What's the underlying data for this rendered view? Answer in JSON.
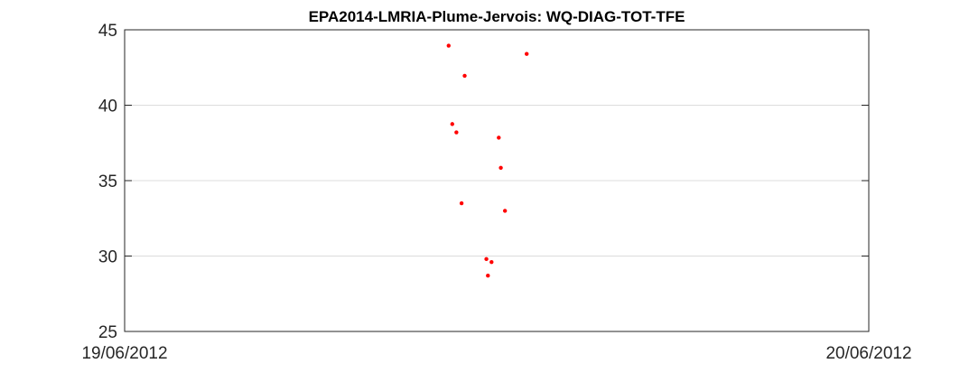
{
  "chart_data": {
    "type": "scatter",
    "title": "EPA2014-LMRIA-Plume-Jervois: WQ-DIAG-TOT-TFE",
    "xlabel": "",
    "ylabel": "",
    "x_tick_labels": [
      "19/06/2012",
      "20/06/2012"
    ],
    "xlim": [
      "19/06/2012 00:00",
      "20/06/2012 00:00"
    ],
    "ylim": [
      25,
      45
    ],
    "y_ticks": [
      25,
      30,
      35,
      40,
      45
    ],
    "y_tick_labels": [
      "25",
      "30",
      "35",
      "40",
      "45"
    ],
    "grid": "horizontal",
    "marker_color": "#ff0000",
    "series": [
      {
        "points": [
          {
            "x": "19/06/2012 10:27",
            "y": 43.95
          },
          {
            "x": "19/06/2012 12:58",
            "y": 43.4
          },
          {
            "x": "19/06/2012 10:58",
            "y": 41.95
          },
          {
            "x": "19/06/2012 10:34",
            "y": 38.75
          },
          {
            "x": "19/06/2012 10:42",
            "y": 38.2
          },
          {
            "x": "19/06/2012 12:04",
            "y": 37.85
          },
          {
            "x": "19/06/2012 12:08",
            "y": 35.85
          },
          {
            "x": "19/06/2012 10:52",
            "y": 33.5
          },
          {
            "x": "19/06/2012 12:16",
            "y": 33.0
          },
          {
            "x": "19/06/2012 11:40",
            "y": 29.8
          },
          {
            "x": "19/06/2012 11:50",
            "y": 29.6
          },
          {
            "x": "19/06/2012 11:43",
            "y": 28.7
          }
        ]
      }
    ]
  }
}
